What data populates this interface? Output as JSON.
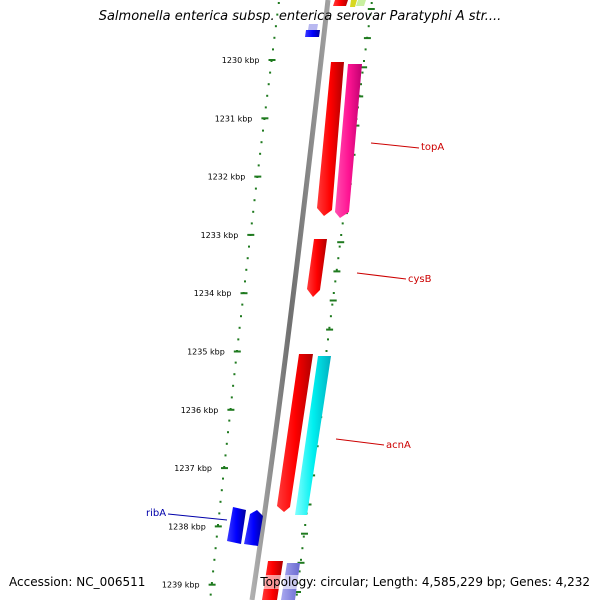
{
  "title": "Salmonella enterica subsp. enterica serovar Paratyphi A str....",
  "footer": {
    "accession": "Accession: NC_006511",
    "topology": "Topology: circular; Length: 4,585,229 bp; Genes: 4,232"
  },
  "colors": {
    "backbone": "#808080",
    "ticks": "#1f7a1f",
    "forward_gene": "#ff0000",
    "reverse_gene": "#0000ff",
    "label_red": "#cc0000",
    "label_blue": "#0000aa"
  },
  "scale_labels": [
    {
      "kbp": 1230,
      "text": "1230 kbp"
    },
    {
      "kbp": 1231,
      "text": "1231 kbp"
    },
    {
      "kbp": 1232,
      "text": "1232 kbp"
    },
    {
      "kbp": 1233,
      "text": "1233 kbp"
    },
    {
      "kbp": 1234,
      "text": "1234 kbp"
    },
    {
      "kbp": 1235,
      "text": "1235 kbp"
    },
    {
      "kbp": 1236,
      "text": "1236 kbp"
    },
    {
      "kbp": 1237,
      "text": "1237 kbp"
    },
    {
      "kbp": 1238,
      "text": "1238 kbp"
    },
    {
      "kbp": 1239,
      "text": "1239 kbp"
    }
  ],
  "gene_labels": [
    {
      "name": "topA",
      "text": "topA",
      "color": "#cc0000"
    },
    {
      "name": "cysB",
      "text": "cysB",
      "color": "#cc0000"
    },
    {
      "name": "acnA",
      "text": "acnA",
      "color": "#cc0000"
    },
    {
      "name": "ribA",
      "text": "ribA",
      "color": "#0000aa"
    }
  ]
}
